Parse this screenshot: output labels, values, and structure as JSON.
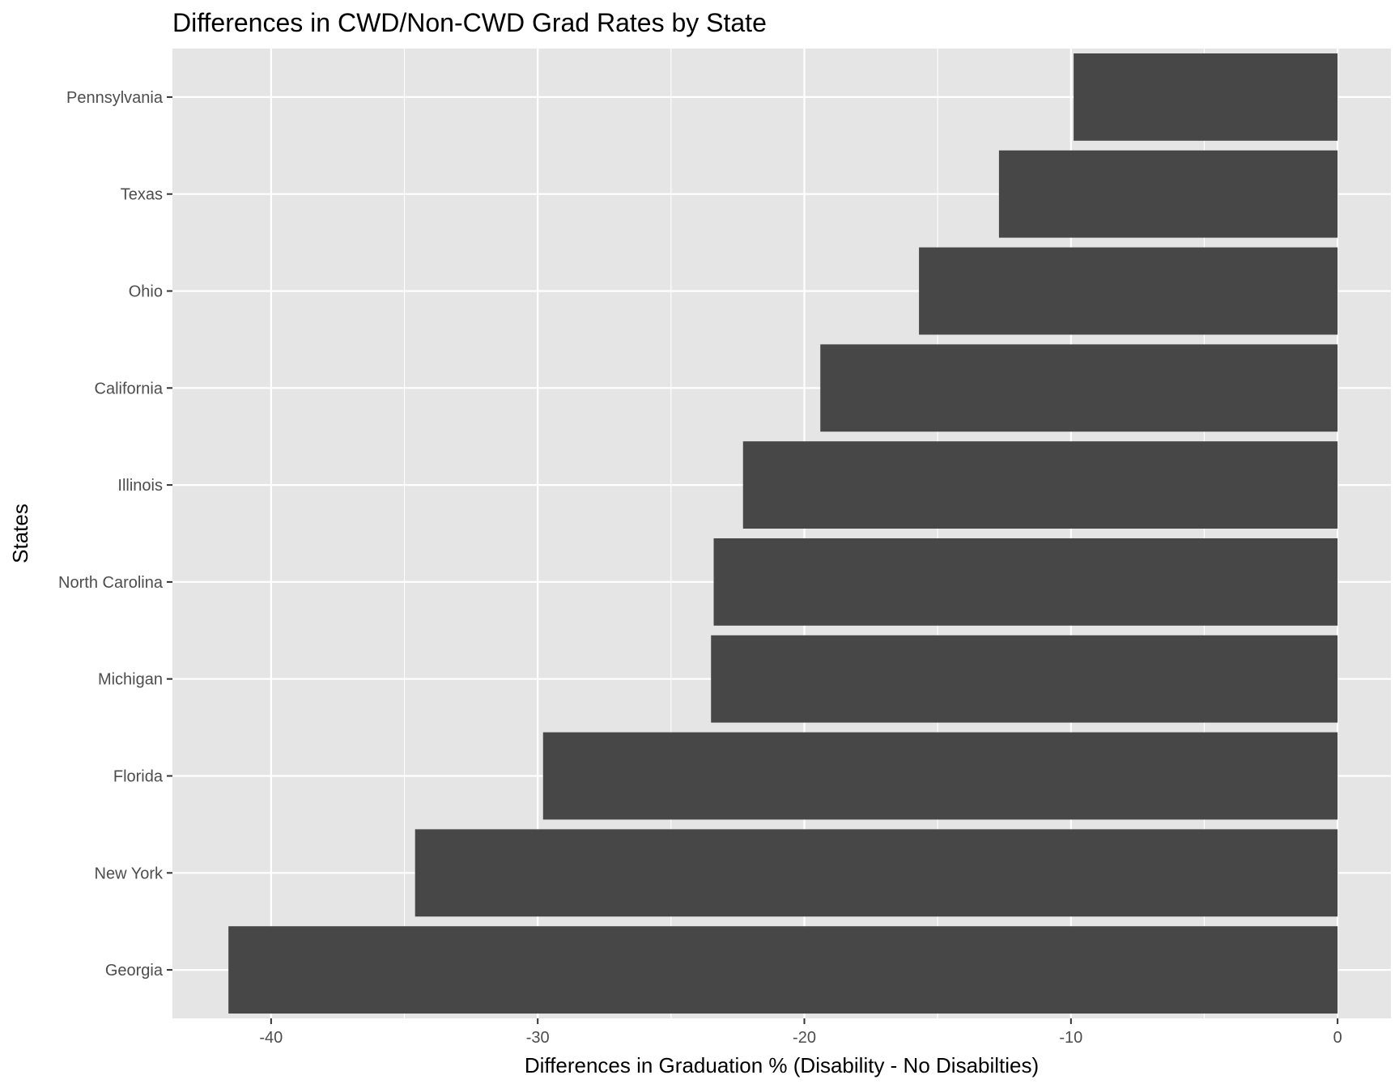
{
  "chart_data": {
    "type": "bar",
    "orientation": "horizontal",
    "title": "Differences in CWD/Non-CWD Grad Rates by State",
    "xlabel": "Differences in Graduation % (Disability - No Disabilties)",
    "ylabel": "States",
    "categories": [
      "Georgia",
      "New York",
      "Florida",
      "Michigan",
      "North Carolina",
      "Illinois",
      "California",
      "Ohio",
      "Texas",
      "Pennsylvania"
    ],
    "values": [
      -41.6,
      -34.6,
      -29.8,
      -23.5,
      -23.4,
      -22.3,
      -19.4,
      -15.7,
      -12.7,
      -9.9
    ],
    "xlim": [
      -43.7,
      2.0
    ],
    "xticks": [
      -40,
      -30,
      -20,
      -10,
      0
    ],
    "xtick_labels": [
      "-40",
      "-30",
      "-20",
      "-10",
      "0"
    ],
    "grid": true,
    "colors": {
      "bar": "#474747",
      "panel": "#e5e5e5",
      "grid_major": "#ffffff",
      "tick_label": "#4d4d4d",
      "tick_mark": "#333333"
    }
  }
}
